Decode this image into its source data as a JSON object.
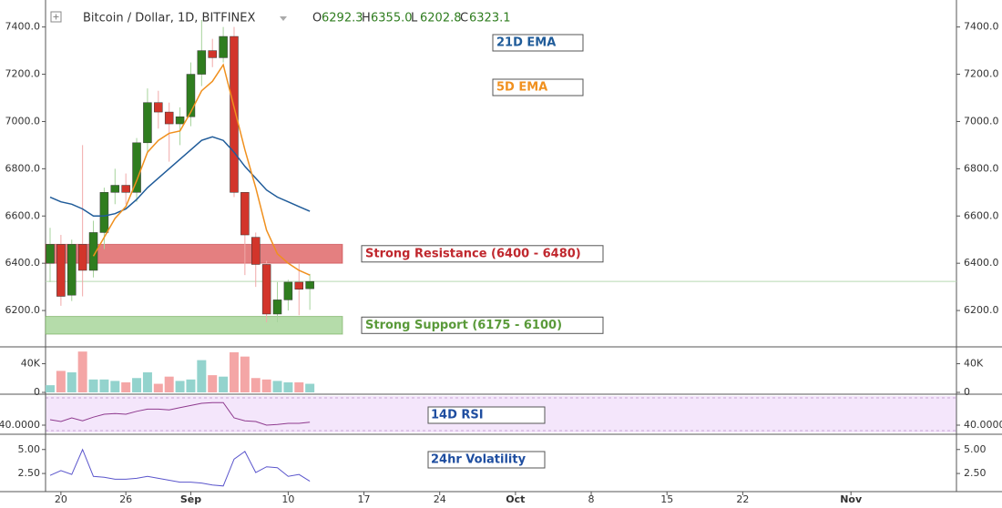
{
  "header": {
    "title": "Bitcoin / Dollar, 1D, BITFINEX",
    "ohlc_keys": [
      "O",
      "H",
      "L",
      "C"
    ],
    "ohlc_values": [
      "6292.3",
      "6355.0",
      "6202.8",
      "6323.1"
    ]
  },
  "chart_data": [
    {
      "type": "candlestick",
      "x": [
        "08-19",
        "08-20",
        "08-21",
        "08-22",
        "08-23",
        "08-24",
        "08-25",
        "08-26",
        "08-27",
        "08-28",
        "08-29",
        "08-30",
        "08-31",
        "09-01",
        "09-02",
        "09-03",
        "09-04",
        "09-05",
        "09-06",
        "09-07",
        "09-08",
        "09-09",
        "09-10",
        "09-11",
        "09-12"
      ],
      "open": [
        6400,
        6480,
        6265,
        6480,
        6370,
        6530,
        6700,
        6730,
        6700,
        6910,
        7080,
        7040,
        6990,
        7020,
        7200,
        7300,
        7270,
        7360,
        6700,
        6510,
        6395,
        6185,
        6245,
        6320,
        6292.3
      ],
      "high": [
        6550,
        6520,
        6500,
        6900,
        6580,
        6720,
        6800,
        6780,
        6930,
        7140,
        7130,
        7080,
        7060,
        7250,
        7430,
        7350,
        7400,
        7400,
        6700,
        6530,
        6410,
        6320,
        6330,
        6400,
        6355
      ],
      "low": [
        6320,
        6220,
        6240,
        6260,
        6340,
        6460,
        6650,
        6650,
        6660,
        6870,
        6970,
        6830,
        6900,
        6980,
        7150,
        7230,
        7250,
        6680,
        6350,
        6300,
        6150,
        6150,
        6200,
        6180,
        6202.8
      ],
      "close": [
        6480,
        6260,
        6480,
        6370,
        6530,
        6700,
        6730,
        6700,
        6910,
        7080,
        7040,
        6990,
        7020,
        7200,
        7300,
        7270,
        7360,
        6700,
        6520,
        6395,
        6185,
        6245,
        6320,
        6290,
        6323.1
      ],
      "up_color": "#2f7d1f",
      "down_color": "#d2352b",
      "wick_up_color": "#a6d39c",
      "wick_down_color": "#f1a9a9",
      "series": [
        {
          "name": "21D EMA",
          "color": "#1f5b99",
          "values": [
            6680,
            6660,
            6650,
            6630,
            6600,
            6600,
            6610,
            6630,
            6670,
            6720,
            6760,
            6800,
            6840,
            6880,
            6920,
            6935,
            6920,
            6870,
            6810,
            6760,
            6710,
            6680,
            6660,
            6640,
            6620
          ]
        },
        {
          "name": "5D EMA",
          "color": "#f0901e",
          "values": [
            null,
            null,
            null,
            null,
            6430,
            6510,
            6590,
            6640,
            6750,
            6870,
            6920,
            6950,
            6960,
            7040,
            7130,
            7170,
            7240,
            7060,
            6880,
            6720,
            6540,
            6440,
            6400,
            6370,
            6350
          ]
        }
      ],
      "zones": [
        {
          "label": "Strong Resistance (6400 - 6480)",
          "low": 6400,
          "high": 6480,
          "color": "#e47f80",
          "text_color": "#c0282e"
        },
        {
          "label": "Strong Support (6175 - 6100)",
          "low": 6100,
          "high": 6175,
          "color": "#b5dcaa",
          "text_color": "#5a9a3a"
        }
      ],
      "xlim": [
        "08-19",
        "11-11"
      ],
      "xticks": [
        {
          "value": "08-20",
          "label": "20"
        },
        {
          "value": "08-26",
          "label": "26"
        },
        {
          "value": "09-01",
          "label": "Sep"
        },
        {
          "value": "09-10",
          "label": "10"
        },
        {
          "value": "09-17",
          "label": "17"
        },
        {
          "value": "09-24",
          "label": "24"
        },
        {
          "value": "10-01",
          "label": "Oct"
        },
        {
          "value": "10-08",
          "label": "8"
        },
        {
          "value": "10-15",
          "label": "15"
        },
        {
          "value": "10-22",
          "label": "22"
        },
        {
          "value": "11-01",
          "label": "Nov"
        }
      ],
      "ylim": [
        6050,
        7495
      ],
      "yticks": [
        {
          "value": 6200,
          "label": "6200.0"
        },
        {
          "value": 6400,
          "label": "6400.0"
        },
        {
          "value": 6600,
          "label": "6600.0"
        },
        {
          "value": 6800,
          "label": "6800.0"
        },
        {
          "value": 7000,
          "label": "7000.0"
        },
        {
          "value": 7200,
          "label": "7200.0"
        },
        {
          "value": 7400,
          "label": "7400.0"
        }
      ]
    },
    {
      "type": "bar",
      "values": [
        10000,
        30000,
        28000,
        57000,
        18000,
        18000,
        16000,
        14000,
        20000,
        28000,
        12000,
        22000,
        16000,
        18000,
        45000,
        24000,
        22000,
        56000,
        50000,
        20000,
        18000,
        16000,
        14000,
        14000,
        12000
      ],
      "up_color": "#93d3cd",
      "down_color": "#f4a6a6",
      "ylim": [
        0,
        61000
      ],
      "yticks": [
        0,
        {
          "value": 40000,
          "label": "40K"
        }
      ]
    },
    {
      "type": "line",
      "name": "14D RSI",
      "color": "#8e3a8e",
      "values": [
        47.5,
        45,
        50,
        46,
        51,
        55,
        56,
        55,
        59,
        62,
        62,
        61,
        64,
        67,
        70,
        71,
        71,
        50,
        46,
        45,
        40,
        41,
        42.5,
        42.5,
        44
      ],
      "ylim": [
        30,
        80
      ],
      "yticks": [
        {
          "value": 40,
          "label": "40.0000"
        }
      ]
    },
    {
      "type": "line",
      "name": "24hr Volatility",
      "color": "#5a55cc",
      "values": [
        2.3,
        2.8,
        2.4,
        5.0,
        2.2,
        2.1,
        1.9,
        1.9,
        2.0,
        2.2,
        2.0,
        1.8,
        1.6,
        1.6,
        1.5,
        1.3,
        1.2,
        4.0,
        4.8,
        2.6,
        3.2,
        3.1,
        2.2,
        2.4,
        1.7
      ],
      "ylim": [
        0.8,
        6.4
      ],
      "yticks": [
        {
          "value": 2.5,
          "label": "2.50"
        },
        {
          "value": 5,
          "label": "5.00"
        }
      ]
    }
  ]
}
